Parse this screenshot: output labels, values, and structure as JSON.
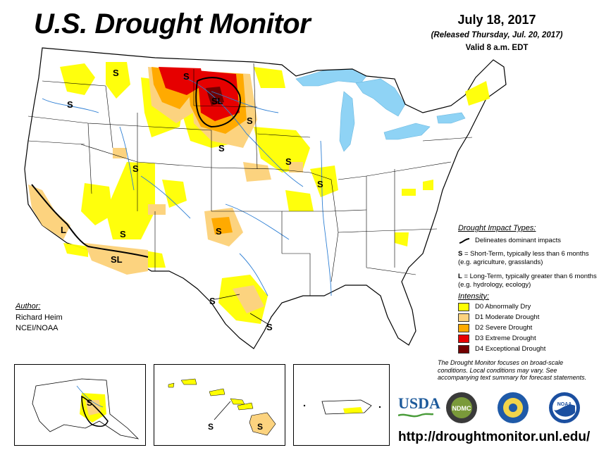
{
  "header": {
    "title": "U.S. Drought Monitor",
    "date": "July 18, 2017",
    "released": "(Released Thursday, Jul. 20, 2017)",
    "valid": "Valid 8 a.m. EDT"
  },
  "author": {
    "heading": "Author:",
    "name": "Richard Heim",
    "org": "NCEI/NOAA"
  },
  "legend": {
    "impact_heading": "Drought Impact Types:",
    "delineates": "Delineates dominant impacts",
    "short_term_key": "S",
    "short_term": " = Short-Term, typically less than 6 months (e.g. agriculture, grasslands)",
    "long_term_key": "L",
    "long_term": " = Long-Term, typically greater than 6 months (e.g. hydrology, ecology)",
    "intensity_heading": "Intensity:",
    "levels": [
      {
        "label": "D0 Abnormally Dry",
        "color": "#ffff00"
      },
      {
        "label": "D1 Moderate Drought",
        "color": "#fcd37f"
      },
      {
        "label": "D2 Severe Drought",
        "color": "#ffaa00"
      },
      {
        "label": "D3 Extreme Drought",
        "color": "#e60000"
      },
      {
        "label": "D4 Exceptional Drought",
        "color": "#730000"
      }
    ]
  },
  "note": "The Drought Monitor focuses on broad-scale conditions. Local conditions may vary. See accompanying text summary for forecast statements.",
  "logos": {
    "usda": "USDA",
    "ndmc": "NDMC",
    "noaa": "NOAA"
  },
  "map_labels": {
    "s": "S",
    "l": "L",
    "sl": "SL"
  },
  "url": "http://droughtmonitor.unl.edu/",
  "colors": {
    "water": "#8fd3f5",
    "d0": "#ffff00",
    "d1": "#fcd37f",
    "d2": "#ffaa00",
    "d3": "#e60000",
    "d4": "#730000"
  }
}
